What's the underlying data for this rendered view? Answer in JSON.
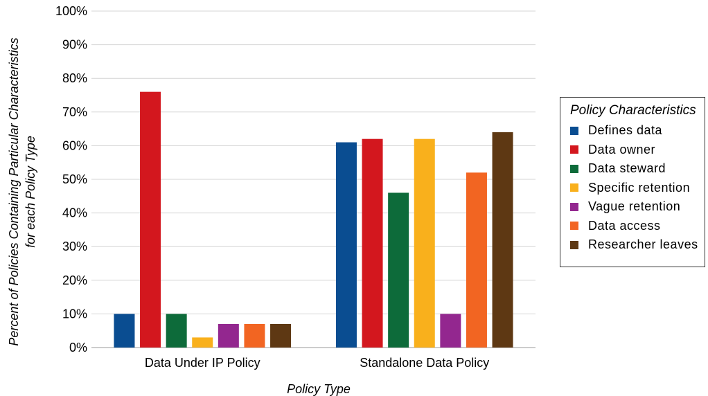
{
  "chart_data": {
    "type": "bar",
    "categories": [
      "Data Under IP Policy",
      "Standalone Data Policy"
    ],
    "series": [
      {
        "name": "Defines data",
        "color": "#0a4d91",
        "values": [
          10,
          61
        ]
      },
      {
        "name": "Data owner",
        "color": "#d3171e",
        "values": [
          76,
          62
        ]
      },
      {
        "name": "Data steward",
        "color": "#0d6b3a",
        "values": [
          10,
          46
        ]
      },
      {
        "name": "Specific retention",
        "color": "#f9b01c",
        "values": [
          3,
          62
        ]
      },
      {
        "name": "Vague retention",
        "color": "#93278f",
        "values": [
          7,
          10
        ]
      },
      {
        "name": "Data access",
        "color": "#f26522",
        "values": [
          7,
          52
        ]
      },
      {
        "name": "Researcher leaves",
        "color": "#5e3813",
        "values": [
          7,
          64
        ]
      }
    ],
    "xlabel": "Policy Type",
    "ylabel_line1": "Percent of Policies Containing Particular Characteristics",
    "ylabel_line2": "for each Policy Type",
    "ylim": [
      0,
      100
    ],
    "yticks": [
      0,
      10,
      20,
      30,
      40,
      50,
      60,
      70,
      80,
      90,
      100
    ],
    "ytick_suffix": "%",
    "grid": true,
    "legend_title": "Policy Characteristics",
    "legend_position": "right"
  }
}
